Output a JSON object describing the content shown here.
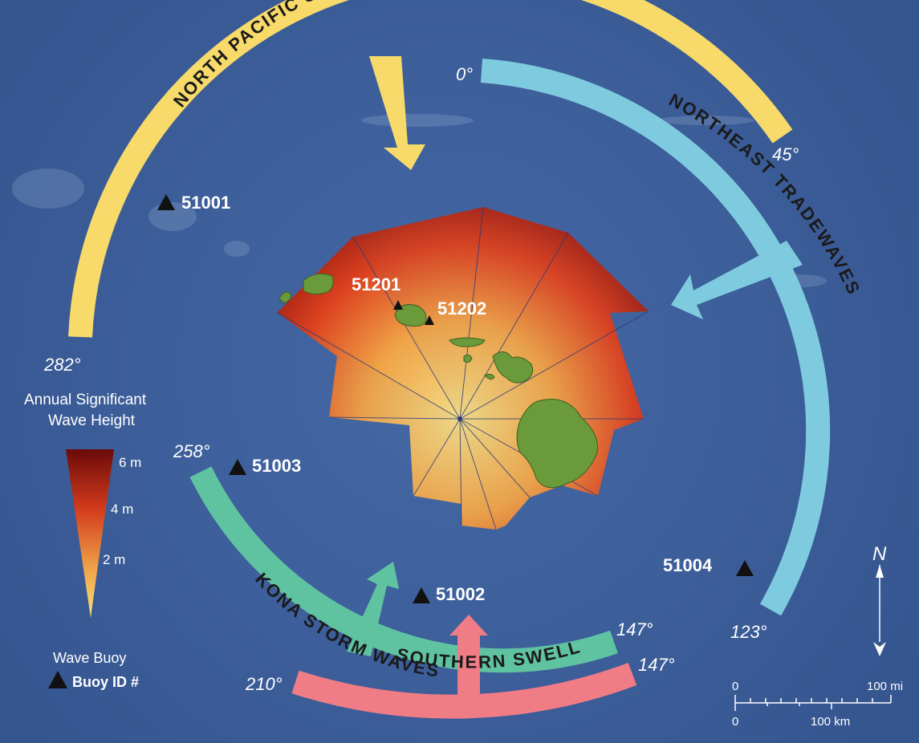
{
  "swells": {
    "north_pacific": {
      "name": "NORTH PACIFIC SWELL",
      "start_deg": "282°",
      "end_deg": "45°"
    },
    "northeast_tradewaves": {
      "name": "NORTHEAST TRADEWAVES",
      "start_deg": "0°",
      "end_deg": "123°"
    },
    "kona_storm": {
      "name": "KONA STORM WAVES",
      "start_deg": "258°",
      "end_deg": "147°"
    },
    "southern": {
      "name": "SOUTHERN SWELL",
      "start_deg": "210°",
      "end_deg": "147°"
    }
  },
  "buoys": [
    {
      "id": "51001"
    },
    {
      "id": "51201"
    },
    {
      "id": "51202"
    },
    {
      "id": "51003"
    },
    {
      "id": "51002"
    },
    {
      "id": "51004"
    }
  ],
  "legend": {
    "title_line1": "Annual Significant",
    "title_line2": "Wave Height",
    "ticks": [
      "6 m",
      "4 m",
      "2 m"
    ],
    "buoy_title": "Wave Buoy",
    "buoy_label": "Buoy ID #"
  },
  "scale": {
    "mi_zero": "0",
    "mi_max": "100 mi",
    "km_zero": "0",
    "km_max": "100 km"
  },
  "compass": {
    "north_symbol": "N"
  },
  "colors": {
    "ocean": "#3f63a0",
    "north_pacific": "#f7da6a",
    "northeast": "#7ecbe0",
    "kona": "#5fc3a1",
    "southern": "#f07c86",
    "wave_high": "#7a0f0f",
    "wave_mid": "#d9441f",
    "wave_low": "#f1d27a",
    "island": "#6a9a3a"
  }
}
